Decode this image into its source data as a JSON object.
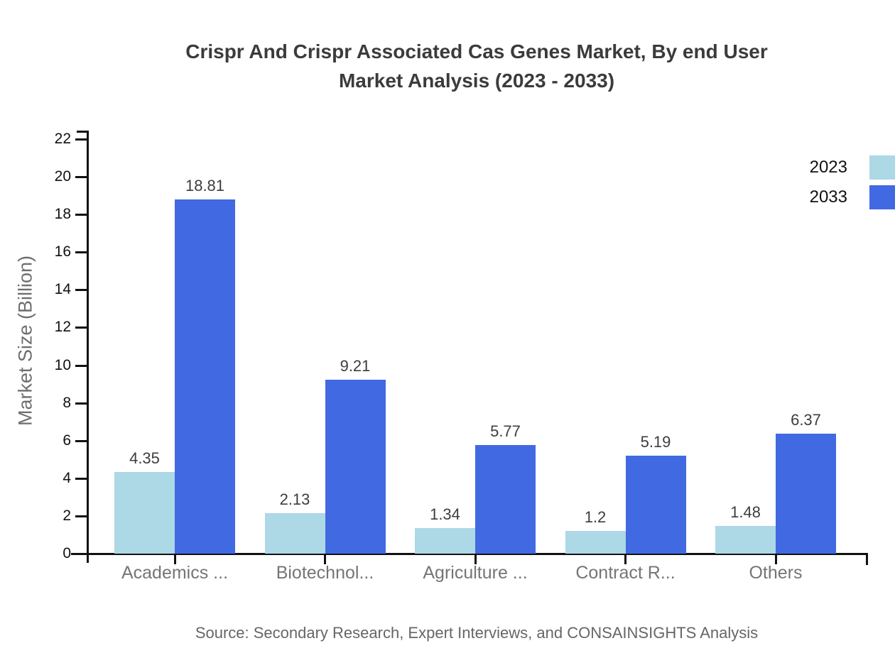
{
  "title": {
    "line1": "Crispr And Crispr Associated Cas Genes Market, By end User",
    "line2": "Market Analysis (2023 - 2033)"
  },
  "chart_data": {
    "type": "bar",
    "categories": [
      "Academics ...",
      "Biotechnol...",
      "Agriculture ...",
      "Contract R...",
      "Others"
    ],
    "series": [
      {
        "name": "2023",
        "color": "#ADD8E6",
        "values": [
          4.35,
          2.13,
          1.34,
          1.2,
          1.48
        ]
      },
      {
        "name": "2033",
        "color": "#4169E1",
        "values": [
          18.81,
          9.21,
          5.77,
          5.19,
          6.37
        ]
      }
    ],
    "value_labels": {
      "2023": [
        "4.35",
        "2.13",
        "1.34",
        "1.2",
        "1.48"
      ],
      "2033": [
        "18.81",
        "9.21",
        "5.77",
        "5.19",
        "6.37"
      ]
    },
    "title": "Crispr And Crispr Associated Cas Genes Market, By end User Market Analysis (2023 - 2033)",
    "xlabel": "",
    "ylabel": "Market Size (Billion)",
    "ylim": [
      0,
      22
    ],
    "ytick_step": 2,
    "grid": false,
    "legend_position": "top-right"
  },
  "source_note": "Source: Secondary Research, Expert Interviews, and CONSAINSIGHTS Analysis"
}
